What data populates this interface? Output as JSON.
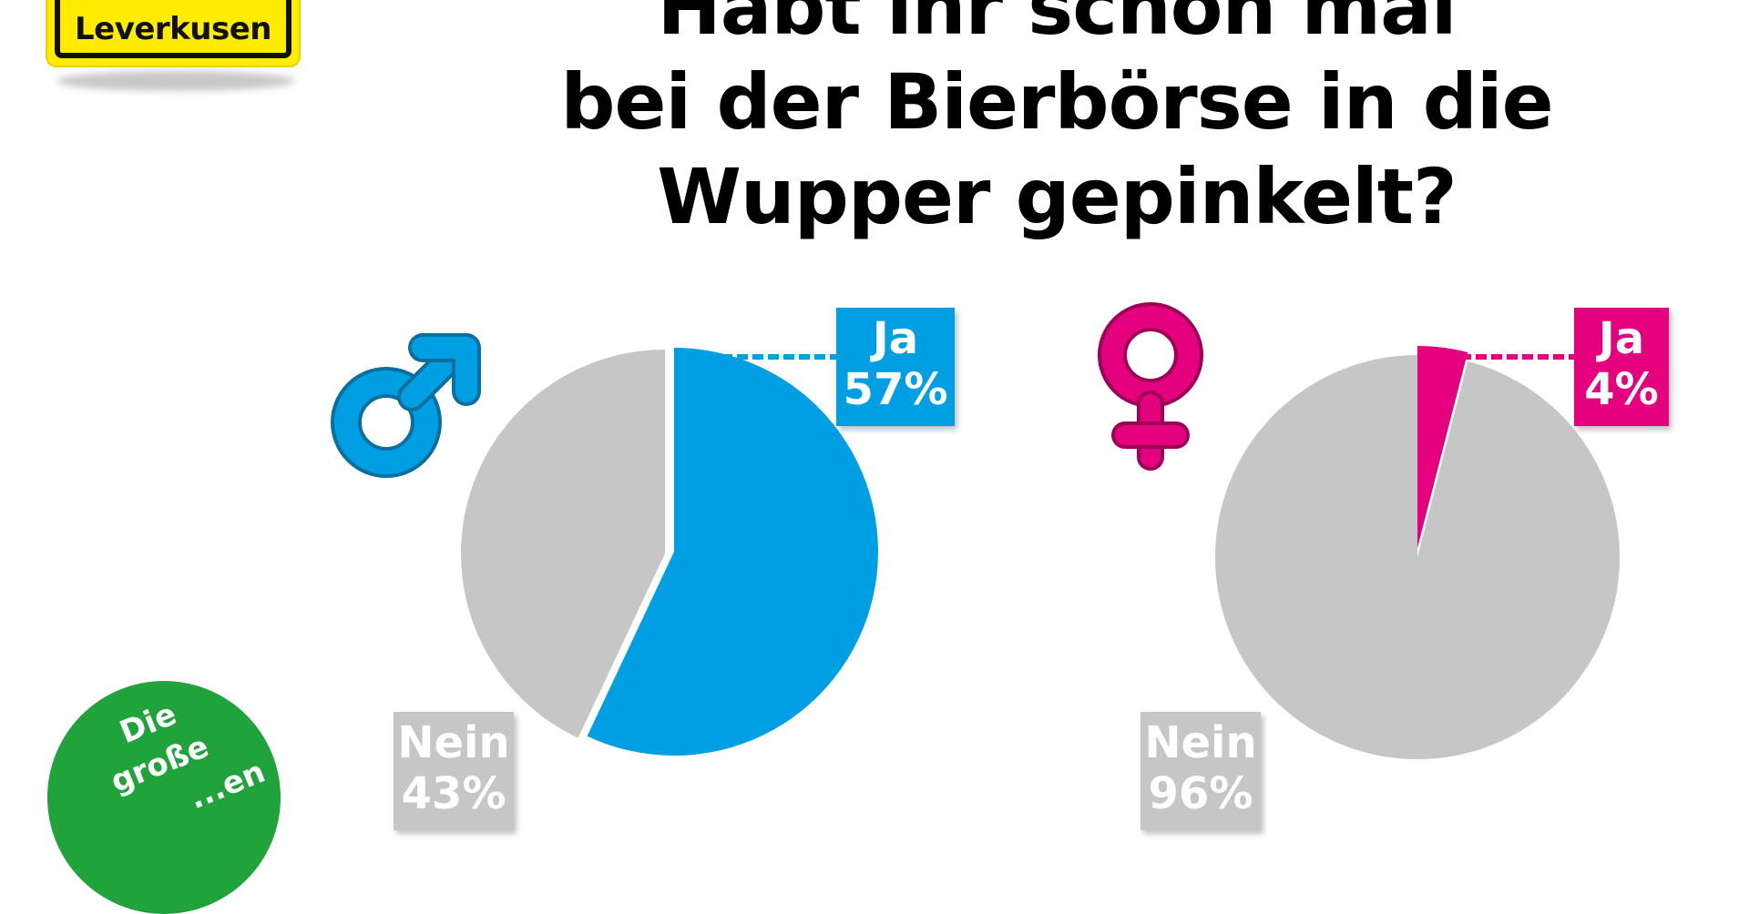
{
  "logo": {
    "text": "Leverkusen"
  },
  "title": {
    "lines": [
      "Habt ihr schon mal",
      "bei der Bierbörse in die",
      "Wupper gepinkelt?"
    ]
  },
  "stamp": {
    "line1": "Die",
    "line2": "große",
    "line3": "...en"
  },
  "chart_data": [
    {
      "type": "pie",
      "group": "male",
      "icon": "male-symbol-icon",
      "categories": [
        "Ja",
        "Nein"
      ],
      "values": [
        57,
        43
      ],
      "labels": [
        "57%",
        "43%"
      ],
      "colors": [
        "#009fe3",
        "#c6c6c6"
      ]
    },
    {
      "type": "pie",
      "group": "female",
      "icon": "female-symbol-icon",
      "categories": [
        "Ja",
        "Nein"
      ],
      "values": [
        4,
        96
      ],
      "labels": [
        "4%",
        "96%"
      ],
      "colors": [
        "#e5007d",
        "#c6c6c6"
      ]
    }
  ],
  "colors": {
    "male": "#009fe3",
    "female": "#e5007d",
    "no": "#c6c6c6",
    "sign": "#ffec00",
    "stamp": "#1fa33a"
  }
}
